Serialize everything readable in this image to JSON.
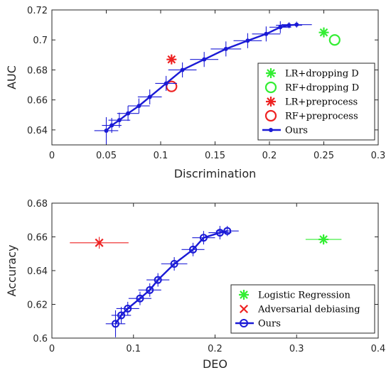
{
  "chart_data": [
    {
      "type": "scatter",
      "xlabel": "Discrimination",
      "ylabel": "AUC",
      "xlim": [
        0,
        0.3
      ],
      "ylim": [
        0.63,
        0.72
      ],
      "xticks": [
        0,
        0.05,
        0.1,
        0.15,
        0.2,
        0.25,
        0.3
      ],
      "xtick_labels": [
        "0",
        "0.05",
        "0.1",
        "0.15",
        "0.2",
        "0.25",
        "0.3"
      ],
      "yticks": [
        0.64,
        0.66,
        0.68,
        0.7,
        0.72
      ],
      "ytick_labels": [
        "0.64",
        "0.66",
        "0.68",
        "0.7",
        "0.72"
      ],
      "legend_position": "lower-right",
      "series": [
        {
          "name": "LR+dropping D",
          "marker": "asterisk",
          "color": "#33ee33",
          "points": [
            [
              0.25,
              0.705
            ]
          ]
        },
        {
          "name": "RF+dropping D",
          "marker": "circle",
          "color": "#33ee33",
          "points": [
            [
              0.26,
              0.7
            ]
          ]
        },
        {
          "name": "LR+preprocess",
          "marker": "asterisk",
          "color": "#ee2222",
          "points": [
            [
              0.11,
              0.687
            ]
          ]
        },
        {
          "name": "RF+preprocess",
          "marker": "circle",
          "color": "#ee2222",
          "points": [
            [
              0.11,
              0.669
            ]
          ]
        },
        {
          "name": "Ours",
          "marker": "dot-line",
          "color": "#1a1ad6",
          "points": [
            [
              0.05,
              0.6395
            ],
            [
              0.055,
              0.643
            ],
            [
              0.062,
              0.6465
            ],
            [
              0.07,
              0.651
            ],
            [
              0.08,
              0.656
            ],
            [
              0.09,
              0.662
            ],
            [
              0.105,
              0.671
            ],
            [
              0.12,
              0.68
            ],
            [
              0.14,
              0.687
            ],
            [
              0.16,
              0.694
            ],
            [
              0.18,
              0.6995
            ],
            [
              0.197,
              0.704
            ],
            [
              0.21,
              0.7085
            ],
            [
              0.218,
              0.7098
            ],
            [
              0.225,
              0.7102
            ]
          ],
          "xerr": [
            0.011,
            0.009,
            0.01,
            0.01,
            0.01,
            0.011,
            0.01,
            0.013,
            0.013,
            0.014,
            0.013,
            0.013,
            0.01,
            0.012,
            0.014
          ],
          "yerr": [
            0.009,
            0.005,
            0.005,
            0.005,
            0.005,
            0.005,
            0.005,
            0.005,
            0.005,
            0.005,
            0.005,
            0.005,
            0.004,
            0.002,
            0.002
          ]
        }
      ]
    },
    {
      "type": "scatter",
      "xlabel": "DEO",
      "ylabel": "Accuracy",
      "xlim": [
        0,
        0.4
      ],
      "ylim": [
        0.6,
        0.68
      ],
      "xticks": [
        0,
        0.1,
        0.2,
        0.3,
        0.4
      ],
      "xtick_labels": [
        "0",
        "0.1",
        "0.2",
        "0.3",
        "0.4"
      ],
      "yticks": [
        0.6,
        0.62,
        0.64,
        0.66,
        0.68
      ],
      "ytick_labels": [
        "0.6",
        "0.62",
        "0.64",
        "0.66",
        "0.68"
      ],
      "legend_position": "lower-right",
      "series": [
        {
          "name": "Logistic Regression",
          "marker": "asterisk",
          "color": "#33ee33",
          "points": [
            [
              0.333,
              0.6585
            ]
          ],
          "xerr": [
            0.022
          ],
          "yerr": [
            0.003
          ]
        },
        {
          "name": "Adversarial debiasing",
          "marker": "x",
          "color": "#ee2222",
          "points": [
            [
              0.058,
              0.6565
            ]
          ],
          "xerr": [
            0.036
          ],
          "yerr": [
            0.0035
          ]
        },
        {
          "name": "Ours",
          "marker": "circle-line",
          "color": "#1a1ad6",
          "points": [
            [
              0.078,
              0.6085
            ],
            [
              0.085,
              0.6135
            ],
            [
              0.093,
              0.6175
            ],
            [
              0.108,
              0.6235
            ],
            [
              0.12,
              0.6285
            ],
            [
              0.13,
              0.6345
            ],
            [
              0.15,
              0.644
            ],
            [
              0.173,
              0.6525
            ],
            [
              0.186,
              0.6595
            ],
            [
              0.206,
              0.6625
            ],
            [
              0.215,
              0.6635
            ]
          ],
          "xerr": [
            0.012,
            0.012,
            0.014,
            0.014,
            0.014,
            0.014,
            0.016,
            0.014,
            0.014,
            0.014,
            0.014
          ],
          "yerr": [
            0.008,
            0.005,
            0.004,
            0.004,
            0.004,
            0.004,
            0.004,
            0.004,
            0.004,
            0.004,
            0.003
          ]
        }
      ]
    }
  ]
}
